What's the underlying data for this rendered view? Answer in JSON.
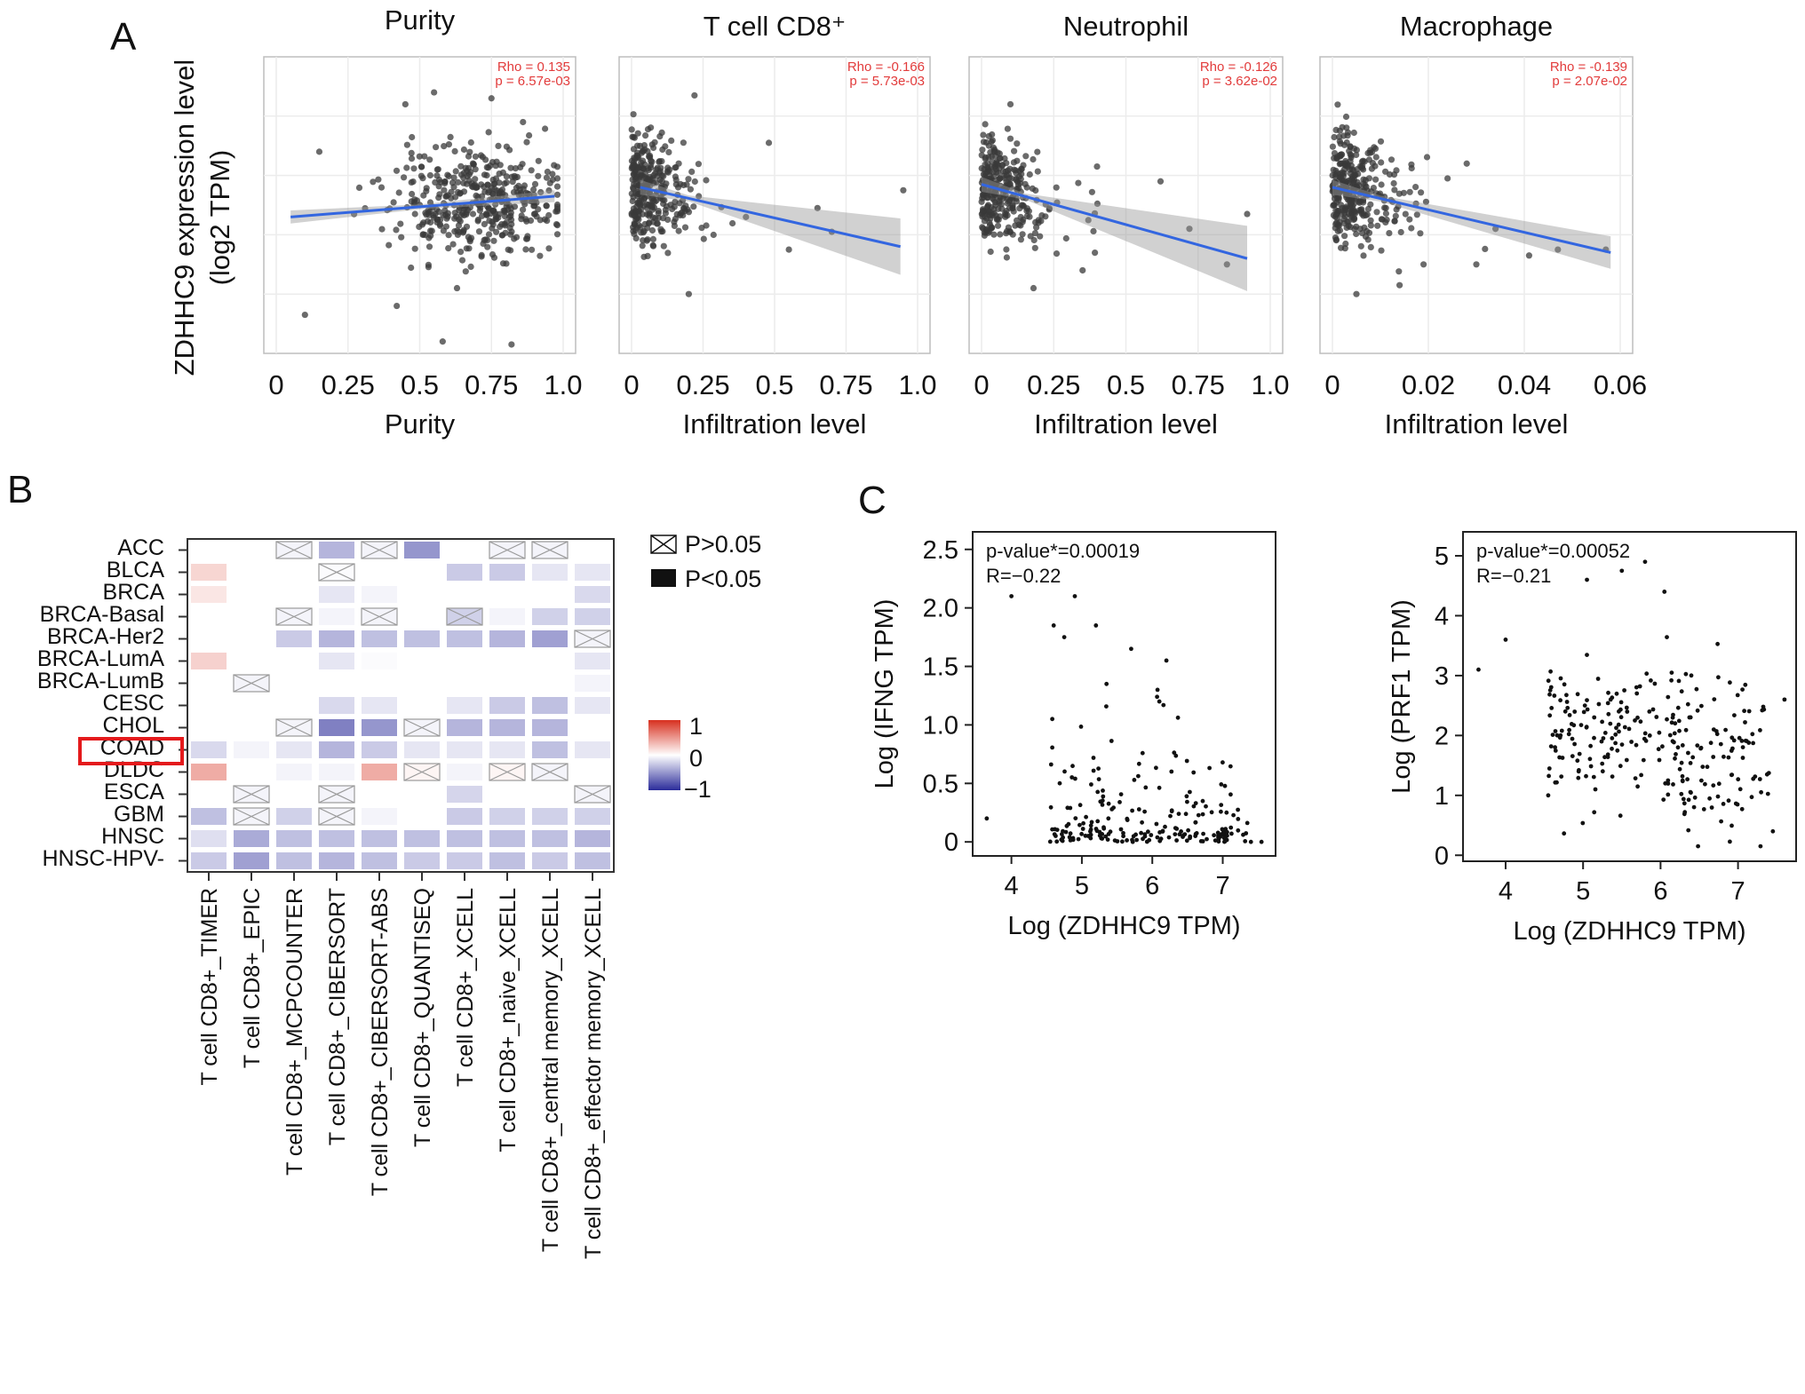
{
  "panel_labels": {
    "a": "A",
    "b": "B",
    "c": "C"
  },
  "shared_labels": {
    "ylabel_line1": "ZDHHC9 expression level",
    "ylabel_line2": "(log2 TPM)"
  },
  "chart_data": [
    {
      "type": "scatter",
      "panel": "A1",
      "title": "Purity",
      "xlabel": "Purity",
      "xlim": [
        0,
        1
      ],
      "xticks": [
        "0",
        "0.25",
        "0.5",
        "0.75",
        "1.0"
      ],
      "xtick_values": [
        0,
        0.25,
        0.5,
        0.75,
        1.0
      ],
      "rho_text": "Rho = 0.135",
      "p_text": "p = 6.57e-03",
      "fit_line": {
        "x": [
          0.05,
          0.97
        ],
        "y": [
          4.6,
          5.3
        ]
      },
      "ci_x": [
        0.05,
        0.5,
        0.97
      ],
      "ci_half": [
        0.22,
        0.08,
        0.2
      ],
      "ylim": [
        0,
        10
      ],
      "seed": 11,
      "n": 420,
      "points": [
        [
          0.1,
          1.3
        ],
        [
          0.42,
          1.6
        ],
        [
          0.58,
          0.4
        ],
        [
          0.82,
          0.3
        ],
        [
          0.63,
          2.2
        ],
        [
          0.15,
          6.8
        ],
        [
          0.75,
          8.6
        ],
        [
          0.55,
          8.8
        ],
        [
          0.45,
          8.4
        ],
        [
          0.86,
          7.8
        ]
      ]
    },
    {
      "type": "scatter",
      "panel": "A2",
      "title": "T cell CD8⁺",
      "xlabel": "Infiltration level",
      "xlim": [
        0,
        1
      ],
      "xticks": [
        "0",
        "0.25",
        "0.5",
        "0.75",
        "1.0"
      ],
      "xtick_values": [
        0,
        0.25,
        0.5,
        0.75,
        1.0
      ],
      "rho_text": "Rho = -0.166",
      "p_text": "p = 5.73e-03",
      "fit_line": {
        "x": [
          0.03,
          0.94
        ],
        "y": [
          5.6,
          3.6
        ]
      },
      "ci_x": [
        0.03,
        0.2,
        0.94
      ],
      "ci_half": [
        0.25,
        0.1,
        0.95
      ],
      "ylim": [
        0,
        10
      ],
      "seed": 23,
      "n": 300,
      "points": [
        [
          0.95,
          5.5
        ],
        [
          0.65,
          4.9
        ],
        [
          0.55,
          3.5
        ],
        [
          0.4,
          4.6
        ],
        [
          0.22,
          8.7
        ],
        [
          0.48,
          7.1
        ],
        [
          0.2,
          2.0
        ],
        [
          0.7,
          4.1
        ]
      ]
    },
    {
      "type": "scatter",
      "panel": "A3",
      "title": "Neutrophil",
      "xlabel": "Infiltration level",
      "xlim": [
        0,
        1
      ],
      "xticks": [
        "0",
        "0.25",
        "0.5",
        "0.75",
        "1.0"
      ],
      "xtick_values": [
        0,
        0.25,
        0.5,
        0.75,
        1.0
      ],
      "rho_text": "Rho = -0.126",
      "p_text": "p = 3.62e-02",
      "fit_line": {
        "x": [
          0.0,
          0.92
        ],
        "y": [
          5.7,
          3.2
        ]
      },
      "ci_x": [
        0.0,
        0.15,
        0.92
      ],
      "ci_half": [
        0.25,
        0.1,
        1.1
      ],
      "ylim": [
        0,
        10
      ],
      "seed": 37,
      "n": 300,
      "points": [
        [
          0.92,
          4.7
        ],
        [
          0.72,
          4.2
        ],
        [
          0.62,
          5.8
        ],
        [
          0.4,
          6.3
        ],
        [
          0.35,
          2.8
        ],
        [
          0.18,
          2.2
        ],
        [
          0.85,
          3.0
        ],
        [
          0.1,
          8.4
        ]
      ]
    },
    {
      "type": "scatter",
      "panel": "A4",
      "title": "Macrophage",
      "xlabel": "Infiltration level",
      "xlim": [
        0,
        0.06
      ],
      "xticks": [
        "0",
        "0.02",
        "0.04",
        "0.06"
      ],
      "xtick_values": [
        0,
        0.02,
        0.04,
        0.06
      ],
      "rho_text": "Rho = -0.139",
      "p_text": "p = 2.07e-02",
      "fit_line": {
        "x": [
          0.0,
          0.058
        ],
        "y": [
          5.6,
          3.4
        ]
      },
      "ci_x": [
        0.0,
        0.01,
        0.058
      ],
      "ci_half": [
        0.25,
        0.1,
        0.55
      ],
      "ylim": [
        0,
        10
      ],
      "seed": 51,
      "n": 330,
      "points": [
        [
          0.057,
          3.5
        ],
        [
          0.047,
          3.5
        ],
        [
          0.041,
          3.3
        ],
        [
          0.034,
          4.2
        ],
        [
          0.028,
          6.4
        ],
        [
          0.024,
          5.9
        ],
        [
          0.019,
          3.0
        ],
        [
          0.014,
          2.3
        ],
        [
          0.005,
          2.0
        ],
        [
          0.03,
          3.0
        ]
      ]
    },
    {
      "type": "heatmap",
      "panel": "B",
      "rows": [
        "ACC",
        "BLCA",
        "BRCA",
        "BRCA-Basal",
        "BRCA-Her2",
        "BRCA-LumA",
        "BRCA-LumB",
        "CESC",
        "CHOL",
        "COAD",
        "DLDC",
        "ESCA",
        "GBM",
        "HNSC",
        "HNSC-HPV-"
      ],
      "columns": [
        "T cell CD8+_TIMER",
        "T cell CD8+_EPIC",
        "T cell CD8+_MCPCOUNTER",
        "T cell CD8+_CIBERSORT",
        "T cell CD8+_CIBERSORT-ABS",
        "T cell CD8+_QUANTISEQ",
        "T cell CD8+_XCELL",
        "T cell CD8+_naive_XCELL",
        "T cell CD8+_central memory_XCELL",
        "T cell CD8+_effector memory_XCELL"
      ],
      "values": [
        [
          0,
          0,
          -0.05,
          -0.35,
          -0.05,
          -0.5,
          0,
          -0.05,
          -0.05,
          0
        ],
        [
          0.2,
          0,
          0,
          -0.02,
          0,
          0,
          -0.25,
          -0.25,
          -0.12,
          -0.12
        ],
        [
          0.12,
          0,
          0,
          -0.12,
          -0.05,
          0,
          0,
          0,
          0,
          -0.18
        ],
        [
          0,
          0,
          -0.05,
          -0.05,
          -0.05,
          0,
          -0.22,
          -0.05,
          -0.22,
          -0.22
        ],
        [
          0,
          0,
          -0.25,
          -0.35,
          -0.3,
          -0.3,
          -0.3,
          -0.35,
          -0.45,
          -0.05
        ],
        [
          0.22,
          0,
          0,
          -0.12,
          -0.02,
          0,
          0,
          0,
          0,
          -0.12
        ],
        [
          0,
          -0.05,
          0,
          0,
          0,
          0,
          0,
          0,
          0,
          -0.05
        ],
        [
          0,
          0,
          0,
          -0.18,
          -0.12,
          0,
          -0.12,
          -0.25,
          -0.3,
          -0.12
        ],
        [
          0,
          0,
          -0.05,
          -0.6,
          -0.5,
          -0.05,
          -0.35,
          -0.35,
          -0.35,
          0
        ],
        [
          -0.18,
          -0.05,
          -0.12,
          -0.35,
          -0.25,
          -0.12,
          -0.12,
          -0.12,
          -0.3,
          -0.12
        ],
        [
          0.4,
          0,
          -0.05,
          -0.05,
          0.4,
          0.05,
          -0.05,
          0.05,
          -0.05,
          0
        ],
        [
          0,
          -0.05,
          0,
          -0.05,
          0,
          0,
          -0.2,
          0,
          0,
          -0.05
        ],
        [
          -0.3,
          -0.05,
          -0.22,
          -0.05,
          -0.05,
          0,
          -0.25,
          -0.22,
          -0.22,
          -0.22
        ],
        [
          -0.15,
          -0.4,
          -0.3,
          -0.3,
          -0.3,
          -0.3,
          -0.3,
          -0.3,
          -0.3,
          -0.35
        ],
        [
          -0.25,
          -0.45,
          -0.3,
          -0.35,
          -0.3,
          -0.25,
          -0.25,
          -0.3,
          -0.25,
          -0.3
        ]
      ],
      "nonsignificant": [
        [
          0,
          2
        ],
        [
          0,
          4
        ],
        [
          0,
          7
        ],
        [
          0,
          8
        ],
        [
          1,
          3
        ],
        [
          3,
          2
        ],
        [
          3,
          4
        ],
        [
          3,
          6
        ],
        [
          4,
          9
        ],
        [
          6,
          1
        ],
        [
          8,
          2
        ],
        [
          8,
          5
        ],
        [
          10,
          5
        ],
        [
          10,
          7
        ],
        [
          10,
          8
        ],
        [
          11,
          1
        ],
        [
          11,
          3
        ],
        [
          11,
          9
        ],
        [
          12,
          1
        ],
        [
          12,
          3
        ]
      ],
      "highlighted_row": "COAD",
      "legend_p_gt": "P>0.05",
      "legend_p_lt": "P<0.05",
      "colorbar_labels": [
        "1",
        "0",
        "−1"
      ],
      "colors": {
        "positive": "#d7301f",
        "zero": "#ffffff",
        "negative": "#2b2c9a",
        "highlight": "#e41a1c"
      }
    },
    {
      "type": "scatter",
      "panel": "C1",
      "xlabel": "Log (ZDHHC9 TPM)",
      "ylabel": "Log (IFNG TPM)",
      "xlim": [
        3.45,
        7.75
      ],
      "ylim": [
        -0.12,
        2.65
      ],
      "xticks": [
        "4",
        "5",
        "6",
        "7"
      ],
      "xtick_values": [
        4,
        5,
        6,
        7
      ],
      "yticks": [
        "0",
        "0.5",
        "1.0",
        "1.5",
        "2.0",
        "2.5"
      ],
      "ytick_values": [
        0,
        0.5,
        1.0,
        1.5,
        2.0,
        2.5
      ],
      "annotation_p": "p-value*=0.00019",
      "annotation_r": "R=−0.22",
      "seed": 71,
      "n": 210,
      "points": [
        [
          3.65,
          0.2
        ],
        [
          4.0,
          2.1
        ],
        [
          4.6,
          1.85
        ],
        [
          4.9,
          2.1
        ],
        [
          5.2,
          1.85
        ],
        [
          5.7,
          1.65
        ],
        [
          6.2,
          1.55
        ],
        [
          7.4,
          0.0
        ],
        [
          7.55,
          0.0
        ],
        [
          4.75,
          1.75
        ],
        [
          4.58,
          1.05
        ],
        [
          6.1,
          1.2
        ],
        [
          5.35,
          1.35
        ]
      ]
    },
    {
      "type": "scatter",
      "panel": "C2",
      "xlabel": "Log (ZDHHC9 TPM)",
      "ylabel": "Log (PRF1 TPM)",
      "xlim": [
        3.45,
        7.75
      ],
      "ylim": [
        -0.1,
        5.4
      ],
      "xticks": [
        "4",
        "5",
        "6",
        "7"
      ],
      "xtick_values": [
        4,
        5,
        6,
        7
      ],
      "yticks": [
        "0",
        "1",
        "2",
        "3",
        "4",
        "5"
      ],
      "ytick_values": [
        0,
        1,
        2,
        3,
        4,
        5
      ],
      "annotation_p": "p-value*=0.00052",
      "annotation_r": "R=−0.21",
      "seed": 89,
      "n": 260,
      "points": [
        [
          3.65,
          3.1
        ],
        [
          4.0,
          3.6
        ],
        [
          7.6,
          2.6
        ],
        [
          5.8,
          4.9
        ],
        [
          5.5,
          4.75
        ],
        [
          5.05,
          4.6
        ],
        [
          6.05,
          4.4
        ],
        [
          7.45,
          0.4
        ],
        [
          4.55,
          1.0
        ]
      ]
    }
  ]
}
